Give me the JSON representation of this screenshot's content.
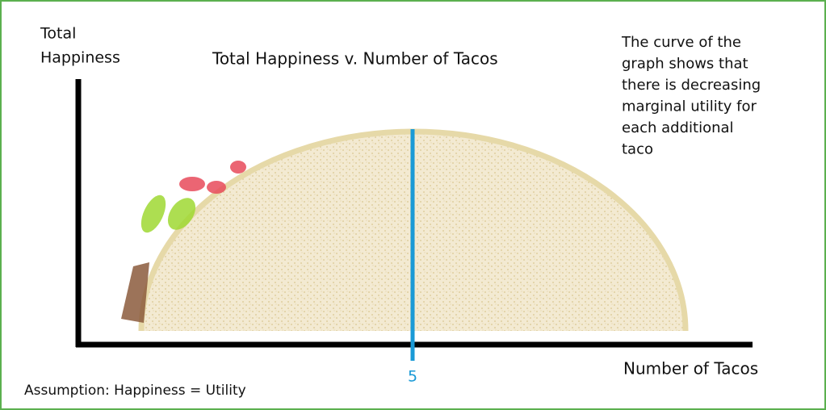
{
  "title": "Total Happiness v. Number of Tacos",
  "y_axis_label": [
    "Total",
    "Happiness"
  ],
  "x_axis_label": "Number of Tacos",
  "marker_label": "5",
  "annotation": [
    "The curve of the",
    "graph shows that",
    "there is decreasing",
    "marginal utility for",
    "each additional",
    "taco"
  ],
  "footnote": "Assumption: Happiness = Utility"
}
